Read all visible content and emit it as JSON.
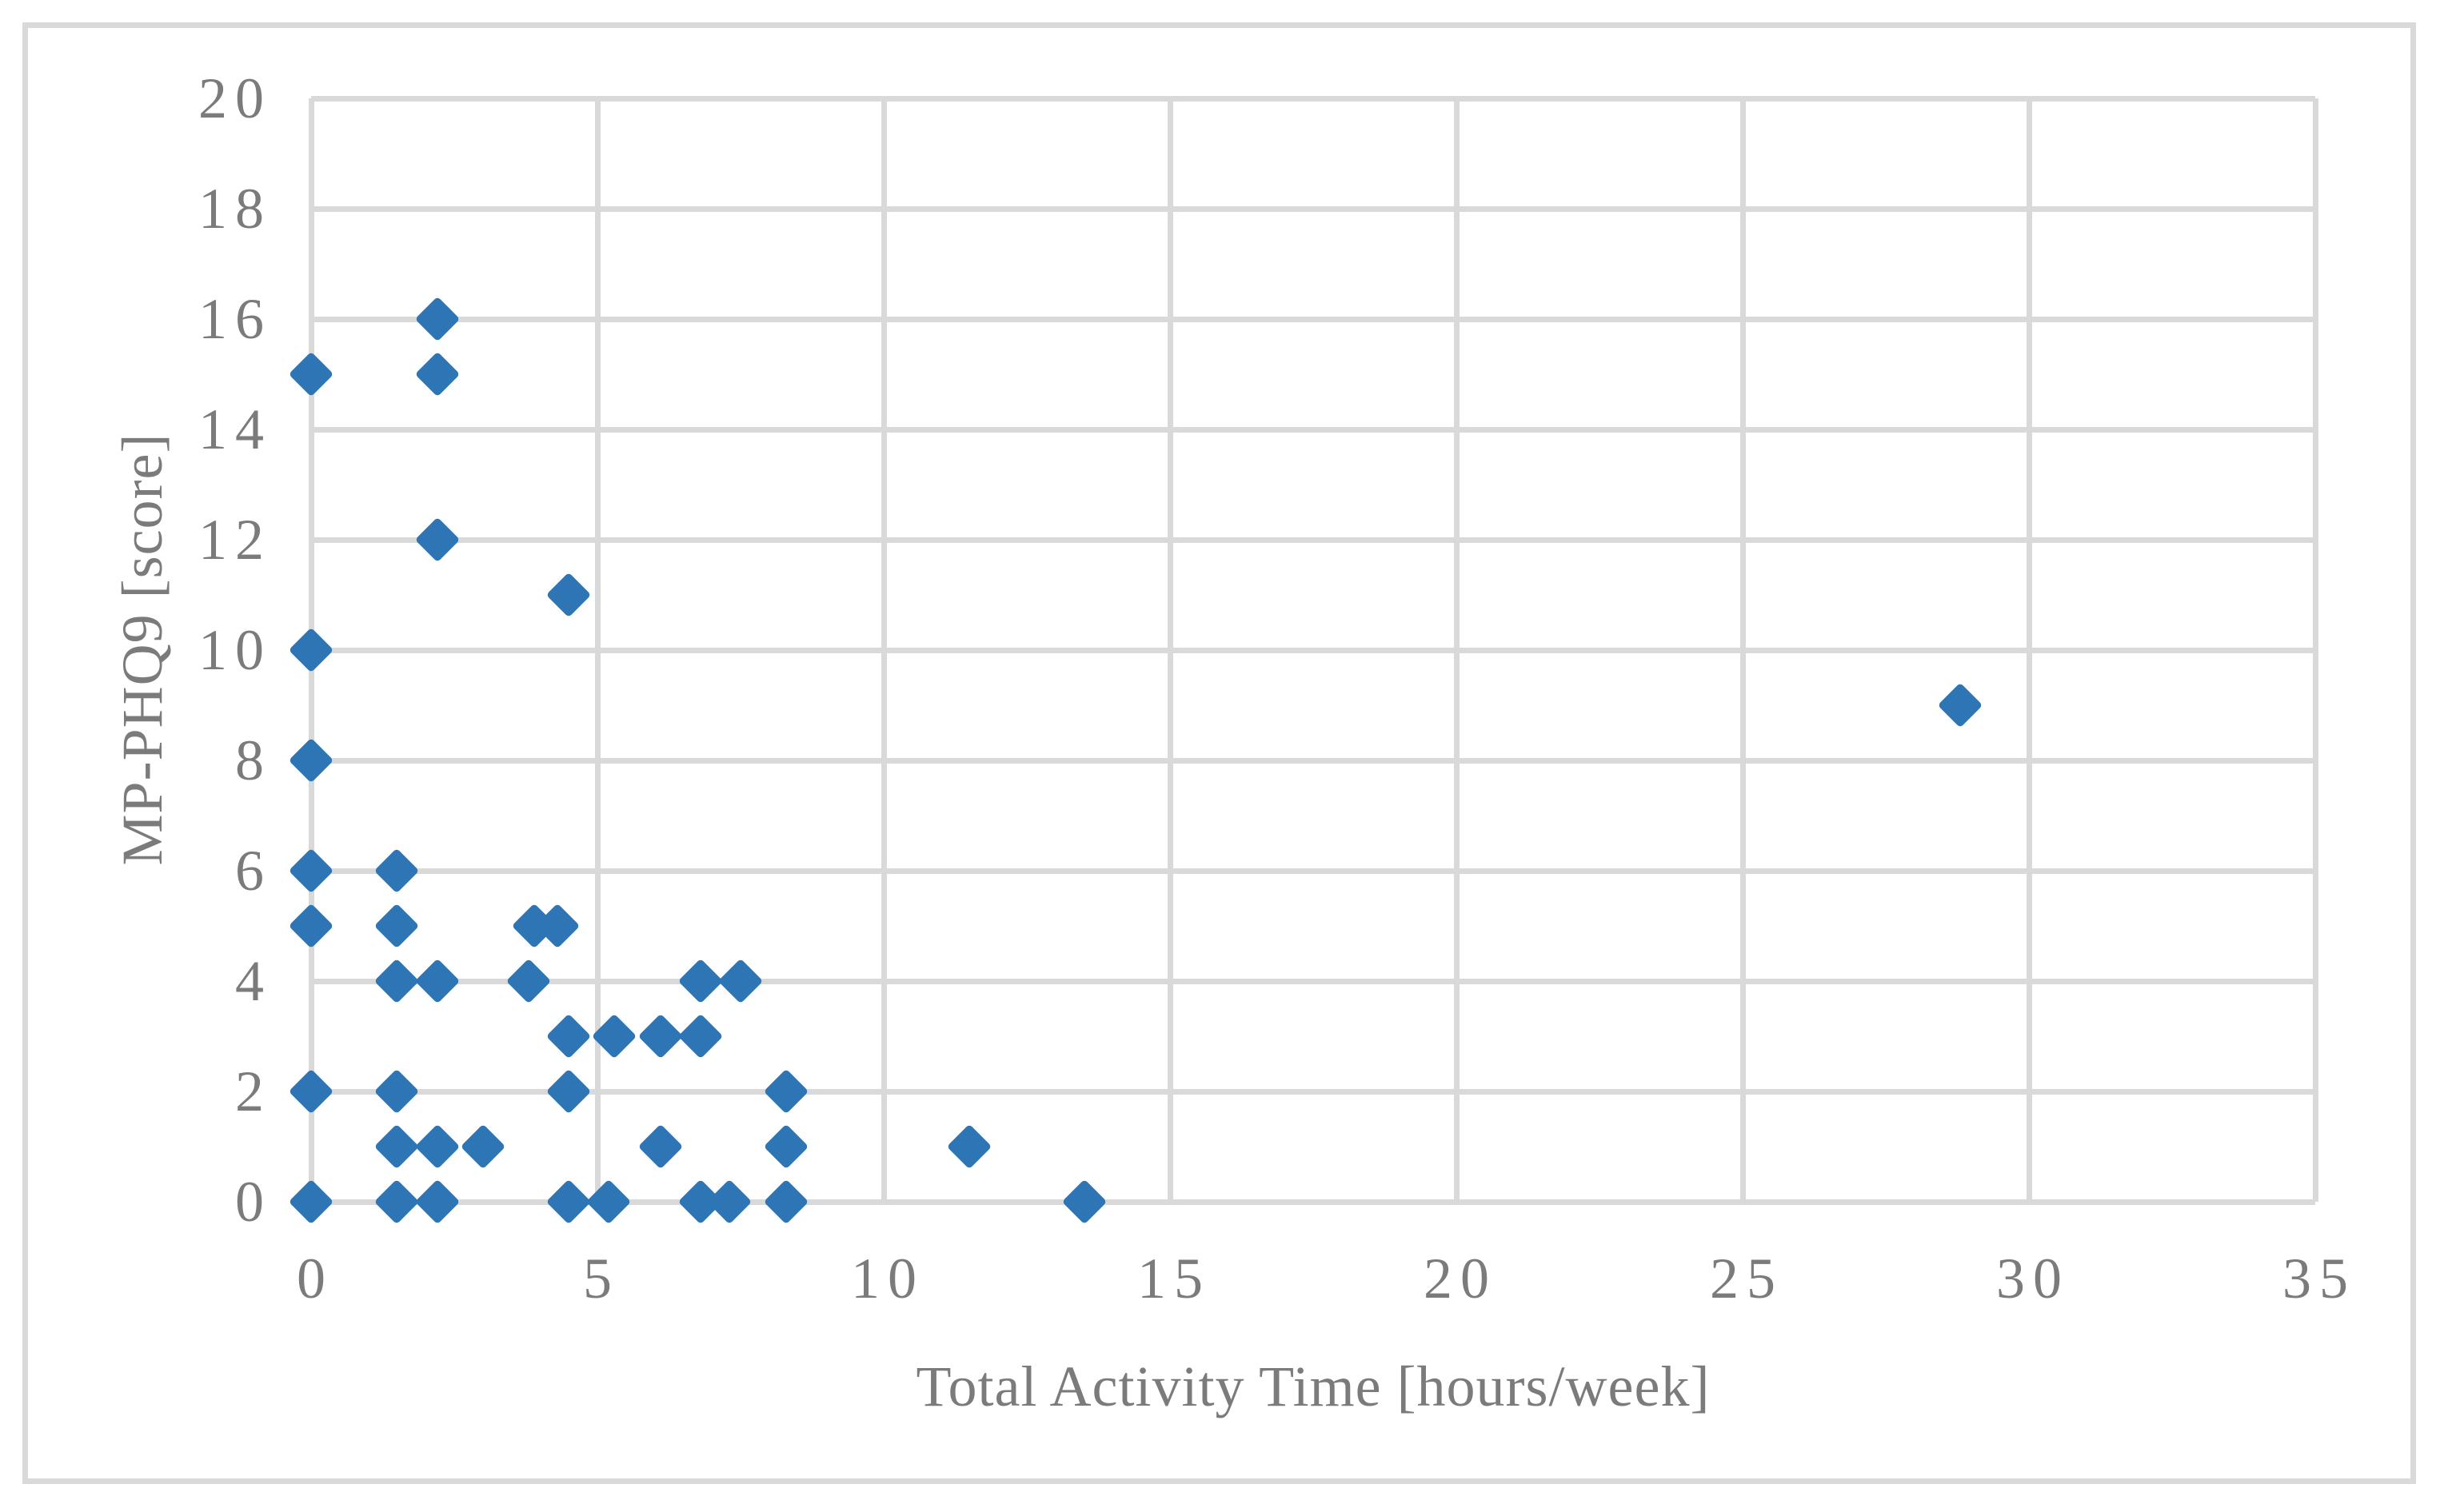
{
  "figure": {
    "background_color": "#ffffff",
    "frame_color": "#d9d9d9",
    "gridline_color": "#d9d9d9",
    "marker_color": "#2e75b6",
    "text_color": "#7b7b7b"
  },
  "chart_data": {
    "type": "scatter",
    "title": "",
    "xlabel": "Total Activity Time [hours/week]",
    "ylabel": "MP-PHQ9 [score]",
    "xlim": [
      0,
      35
    ],
    "ylim": [
      0,
      20
    ],
    "x_ticks": [
      0,
      5,
      10,
      15,
      20,
      25,
      30,
      35
    ],
    "y_ticks": [
      0,
      2,
      4,
      6,
      8,
      10,
      12,
      14,
      16,
      18,
      20
    ],
    "grid": true,
    "legend_position": "none",
    "marker_shape": "diamond",
    "points": [
      [
        0,
        0
      ],
      [
        0,
        2
      ],
      [
        0,
        5
      ],
      [
        0,
        6
      ],
      [
        0,
        8
      ],
      [
        0,
        10
      ],
      [
        0,
        15
      ],
      [
        1.5,
        0
      ],
      [
        1.5,
        1
      ],
      [
        1.5,
        2
      ],
      [
        1.5,
        4
      ],
      [
        1.5,
        5
      ],
      [
        1.5,
        6
      ],
      [
        2.2,
        0
      ],
      [
        2.2,
        1
      ],
      [
        2.2,
        4
      ],
      [
        2.2,
        12
      ],
      [
        2.2,
        15
      ],
      [
        2.2,
        16
      ],
      [
        3,
        1
      ],
      [
        3.8,
        4
      ],
      [
        3.9,
        5
      ],
      [
        4.3,
        5
      ],
      [
        4.5,
        0
      ],
      [
        4.5,
        2
      ],
      [
        4.5,
        3
      ],
      [
        4.5,
        11
      ],
      [
        5.2,
        0
      ],
      [
        5.3,
        3
      ],
      [
        6.1,
        1
      ],
      [
        6.1,
        3
      ],
      [
        6.8,
        0
      ],
      [
        6.8,
        3
      ],
      [
        6.8,
        4
      ],
      [
        7.3,
        0
      ],
      [
        7.5,
        4
      ],
      [
        8.3,
        0
      ],
      [
        8.3,
        1
      ],
      [
        8.3,
        2
      ],
      [
        11.5,
        1
      ],
      [
        13.5,
        0
      ],
      [
        28.8,
        9
      ]
    ]
  }
}
